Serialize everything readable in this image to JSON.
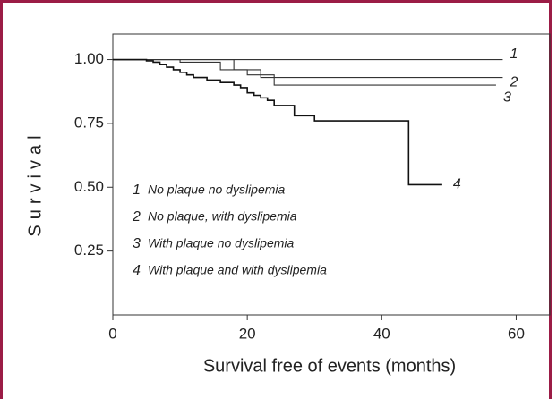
{
  "chart_data": {
    "type": "line",
    "step": "post",
    "x_label": "Survival free of events (months)",
    "y_label": "Survival",
    "xlim": [
      0,
      65
    ],
    "ylim": [
      0,
      1.1
    ],
    "xticks": [
      0,
      20,
      40,
      60
    ],
    "yticks": [
      {
        "value": 0.25,
        "label": "0.25"
      },
      {
        "value": 0.5,
        "label": "0.50"
      },
      {
        "value": 0.75,
        "label": "0.75"
      },
      {
        "value": 1,
        "label": "1.00"
      }
    ],
    "series": [
      {
        "name": "No plaque no dyslipemia",
        "label": "1",
        "color": "#333333",
        "x": [
          0,
          58
        ],
        "values": [
          1,
          1
        ]
      },
      {
        "name": "No plaque, with dyslipemia",
        "label": "2",
        "color": "#333333",
        "x": [
          0,
          18,
          22,
          58
        ],
        "values": [
          1,
          0.96,
          0.93,
          0.93
        ]
      },
      {
        "name": "With plaque no dyslipemia",
        "label": "3",
        "color": "#333333",
        "x": [
          0,
          10,
          16,
          20,
          24,
          57
        ],
        "values": [
          1,
          0.99,
          0.96,
          0.94,
          0.9,
          0.9
        ]
      },
      {
        "name": "With plaque and with dyslipemia",
        "label": "4",
        "color": "#111111",
        "x": [
          0,
          5,
          6,
          7,
          8,
          9,
          10,
          11,
          12,
          14,
          16,
          18,
          19,
          20,
          21,
          22,
          23,
          24,
          27,
          30,
          44,
          49
        ],
        "values": [
          1,
          0.995,
          0.99,
          0.98,
          0.97,
          0.96,
          0.95,
          0.94,
          0.93,
          0.92,
          0.91,
          0.9,
          0.89,
          0.87,
          0.86,
          0.85,
          0.84,
          0.82,
          0.78,
          0.76,
          0.51,
          0.51
        ]
      }
    ]
  }
}
